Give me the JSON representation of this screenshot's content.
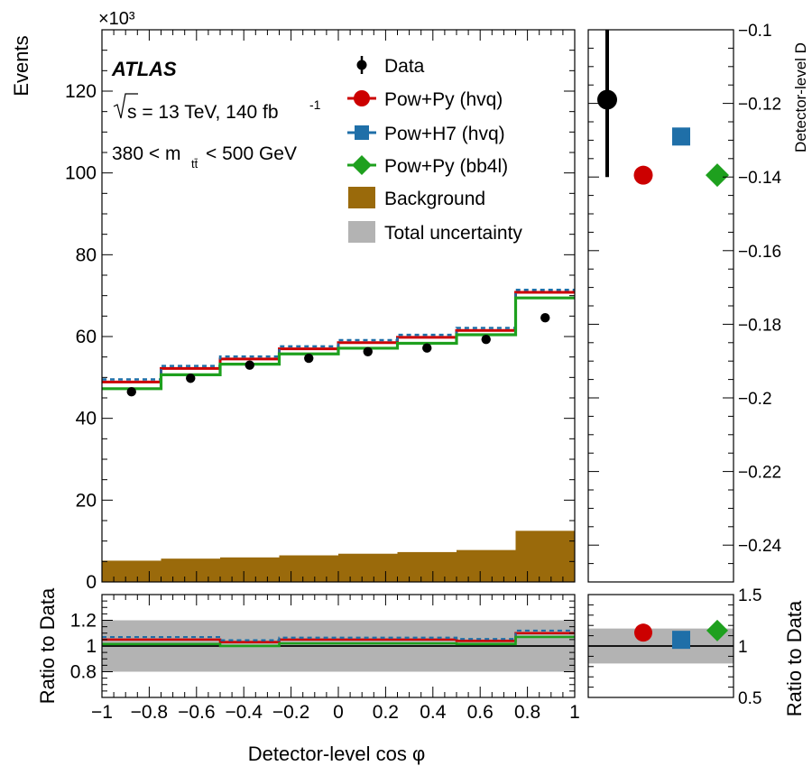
{
  "colors": {
    "data": "#000000",
    "pow_py_hvq": "#cc0000",
    "pow_h7_hvq": "#1f6fa8",
    "pow_py_bb4l": "#1ea01e",
    "background": "#9a6a0b",
    "uncertainty": "#b3b3b3"
  },
  "chart_data": [
    {
      "id": "main",
      "type": "histogram",
      "xlabel": "Detector-level cos φ",
      "ylabel": "Events",
      "y_multiplier": "×10³",
      "xlim": [
        -1,
        1
      ],
      "ylim": [
        0,
        135
      ],
      "x_ticks": [
        "−1",
        "−0.8",
        "−0.6",
        "−0.4",
        "−0.2",
        "0",
        "0.2",
        "0.4",
        "0.6",
        "0.8",
        "1"
      ],
      "y_ticks": [
        "0",
        "20",
        "40",
        "60",
        "80",
        "100",
        "120"
      ],
      "bin_edges": [
        -1,
        -0.75,
        -0.5,
        -0.25,
        0,
        0.25,
        0.5,
        0.75,
        1
      ],
      "annotations": {
        "experiment": "ATLAS",
        "energy": "s = 13 TeV, 140 fb",
        "energy_sup": "-1",
        "mass_range": "380 < m",
        "mass_sub": "tt̄",
        "mass_tail": " < 500 GeV"
      },
      "legend": [
        {
          "label": "Data",
          "marker": "point",
          "color": "#000000"
        },
        {
          "label": "Pow+Py (hvq)",
          "marker": "circle",
          "color": "#cc0000"
        },
        {
          "label": "Pow+H7 (hvq)",
          "marker": "square",
          "color": "#1f6fa8"
        },
        {
          "label": "Pow+Py (bb4l)",
          "marker": "diamond",
          "color": "#1ea01e"
        },
        {
          "label": "Background",
          "marker": "box",
          "color": "#9a6a0b"
        },
        {
          "label": "Total uncertainty",
          "marker": "box",
          "color": "#b3b3b3"
        }
      ],
      "series": [
        {
          "name": "Data",
          "values": [
            46.5,
            49.8,
            53.0,
            54.7,
            56.3,
            57.2,
            59.3,
            64.6
          ]
        },
        {
          "name": "Pow+Py (hvq)",
          "values": [
            48.9,
            52.2,
            54.5,
            57.0,
            58.5,
            59.8,
            61.5,
            70.8
          ]
        },
        {
          "name": "Pow+H7 (hvq)",
          "values": [
            49.2,
            52.5,
            54.8,
            57.3,
            58.8,
            60.1,
            61.8,
            71.1
          ]
        },
        {
          "name": "Pow+Py (bb4l)",
          "values": [
            47.6,
            51.0,
            53.6,
            56.1,
            57.5,
            58.7,
            60.8,
            69.8
          ]
        },
        {
          "name": "Background",
          "values": [
            5.2,
            5.7,
            6.0,
            6.5,
            6.9,
            7.3,
            7.8,
            12.5
          ]
        }
      ]
    },
    {
      "id": "main_ratio",
      "type": "histogram",
      "ylabel": "Ratio to Data",
      "xlim": [
        -1,
        1
      ],
      "ylim": [
        0.6,
        1.4
      ],
      "y_ticks": [
        "0.8",
        "1",
        "1.2"
      ],
      "uncertainty_band": [
        0.8,
        1.2
      ],
      "series": [
        {
          "name": "Pow+Py (hvq)",
          "values": [
            1.05,
            1.05,
            1.03,
            1.05,
            1.05,
            1.05,
            1.04,
            1.1
          ]
        },
        {
          "name": "Pow+H7 (hvq)",
          "values": [
            1.06,
            1.06,
            1.035,
            1.055,
            1.055,
            1.055,
            1.045,
            1.11
          ]
        },
        {
          "name": "Pow+Py (bb4l)",
          "values": [
            1.025,
            1.025,
            1.01,
            1.03,
            1.03,
            1.03,
            1.025,
            1.08
          ]
        }
      ]
    },
    {
      "id": "side",
      "type": "scatter",
      "ylabel": "Detector-level D",
      "ylim": [
        -0.25,
        -0.1
      ],
      "y_ticks": [
        "−0.1",
        "−0.12",
        "−0.14",
        "−0.16",
        "−0.18",
        "−0.2",
        "−0.22",
        "−0.24"
      ],
      "points": [
        {
          "name": "Data",
          "value": -0.119,
          "err_low": -0.14,
          "err_high": -0.1
        },
        {
          "name": "Pow+Py (hvq)",
          "value": -0.1395
        },
        {
          "name": "Pow+H7 (hvq)",
          "value": -0.129
        },
        {
          "name": "Pow+Py (bb4l)",
          "value": -0.1395
        }
      ]
    },
    {
      "id": "side_ratio",
      "type": "scatter",
      "ylabel": "Ratio to Data",
      "ylim": [
        0.5,
        1.5
      ],
      "y_ticks": [
        "0.5",
        "1",
        "1.5"
      ],
      "uncertainty_band": [
        0.83,
        1.17
      ],
      "points": [
        {
          "name": "Pow+Py (hvq)",
          "value": 1.13
        },
        {
          "name": "Pow+H7 (hvq)",
          "value": 1.06
        },
        {
          "name": "Pow+Py (bb4l)",
          "value": 1.15
        }
      ]
    }
  ]
}
